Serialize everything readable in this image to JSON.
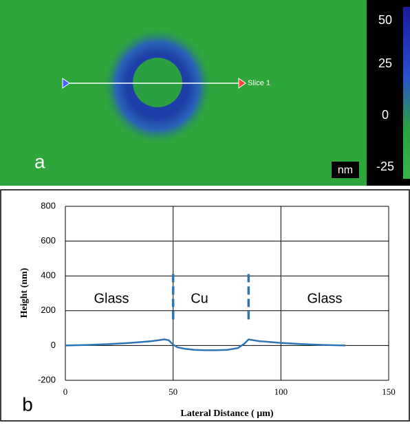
{
  "panel_a": {
    "label": "a",
    "slice_label": "Slice 1",
    "unit": "nm",
    "colorbar_ticks": [
      50,
      25,
      0,
      -25
    ]
  },
  "chart_data": {
    "type": "line",
    "panel_label": "b",
    "x_label": "Lateral Distance ( µm)",
    "y_label": "Height (nm)",
    "xlim": [
      0,
      150
    ],
    "xticks": [
      0,
      50,
      100,
      150
    ],
    "ylim": [
      -200,
      800
    ],
    "yticks": [
      -200,
      0,
      200,
      400,
      600,
      800
    ],
    "grid": true,
    "annotations": [
      "Glass",
      "Cu",
      "Glass"
    ],
    "dividers": {
      "x": [
        50,
        85
      ],
      "y_from": 150,
      "y_to": 420,
      "color": "#2e75b6"
    },
    "series": [
      {
        "color": "#2e75b6",
        "x": [
          0,
          10,
          20,
          30,
          40,
          46,
          48,
          50,
          52,
          55,
          60,
          65,
          70,
          75,
          80,
          83,
          85,
          90,
          100,
          110,
          120,
          130
        ],
        "values": [
          0,
          3,
          8,
          15,
          25,
          35,
          30,
          5,
          -10,
          -18,
          -25,
          -27,
          -27,
          -25,
          -15,
          10,
          35,
          25,
          15,
          8,
          3,
          0
        ]
      }
    ]
  }
}
